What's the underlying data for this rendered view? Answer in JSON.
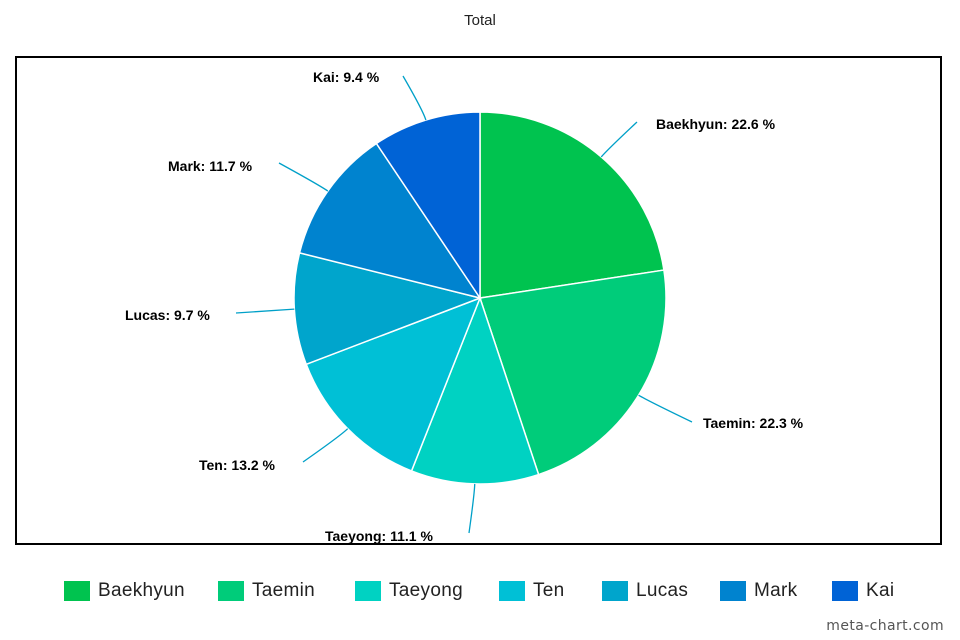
{
  "chart_data": {
    "type": "pie",
    "title": "Total",
    "slices": [
      {
        "name": "Baekhyun",
        "value": 22.6,
        "label": "Baekhyun: 22.6 %",
        "color": "#00c34f"
      },
      {
        "name": "Taemin",
        "value": 22.3,
        "label": "Taemin: 22.3 %",
        "color": "#00cc7a"
      },
      {
        "name": "Taeyong",
        "value": 11.1,
        "label": "Taeyong: 11.1 %",
        "color": "#00d2c2"
      },
      {
        "name": "Ten",
        "value": 13.2,
        "label": "Ten: 13.2 %",
        "color": "#00c0d6"
      },
      {
        "name": "Lucas",
        "value": 9.7,
        "label": "Lucas: 9.7 %",
        "color": "#00a5cc"
      },
      {
        "name": "Mark",
        "value": 11.7,
        "label": "Mark: 11.7 %",
        "color": "#0083cf"
      },
      {
        "name": "Kai",
        "value": 9.4,
        "label": "Kai: 9.4 %",
        "color": "#0063d6"
      }
    ],
    "legend_position": "bottom",
    "leader_line_color": "#00a0c8"
  },
  "watermark": "meta-chart.com"
}
